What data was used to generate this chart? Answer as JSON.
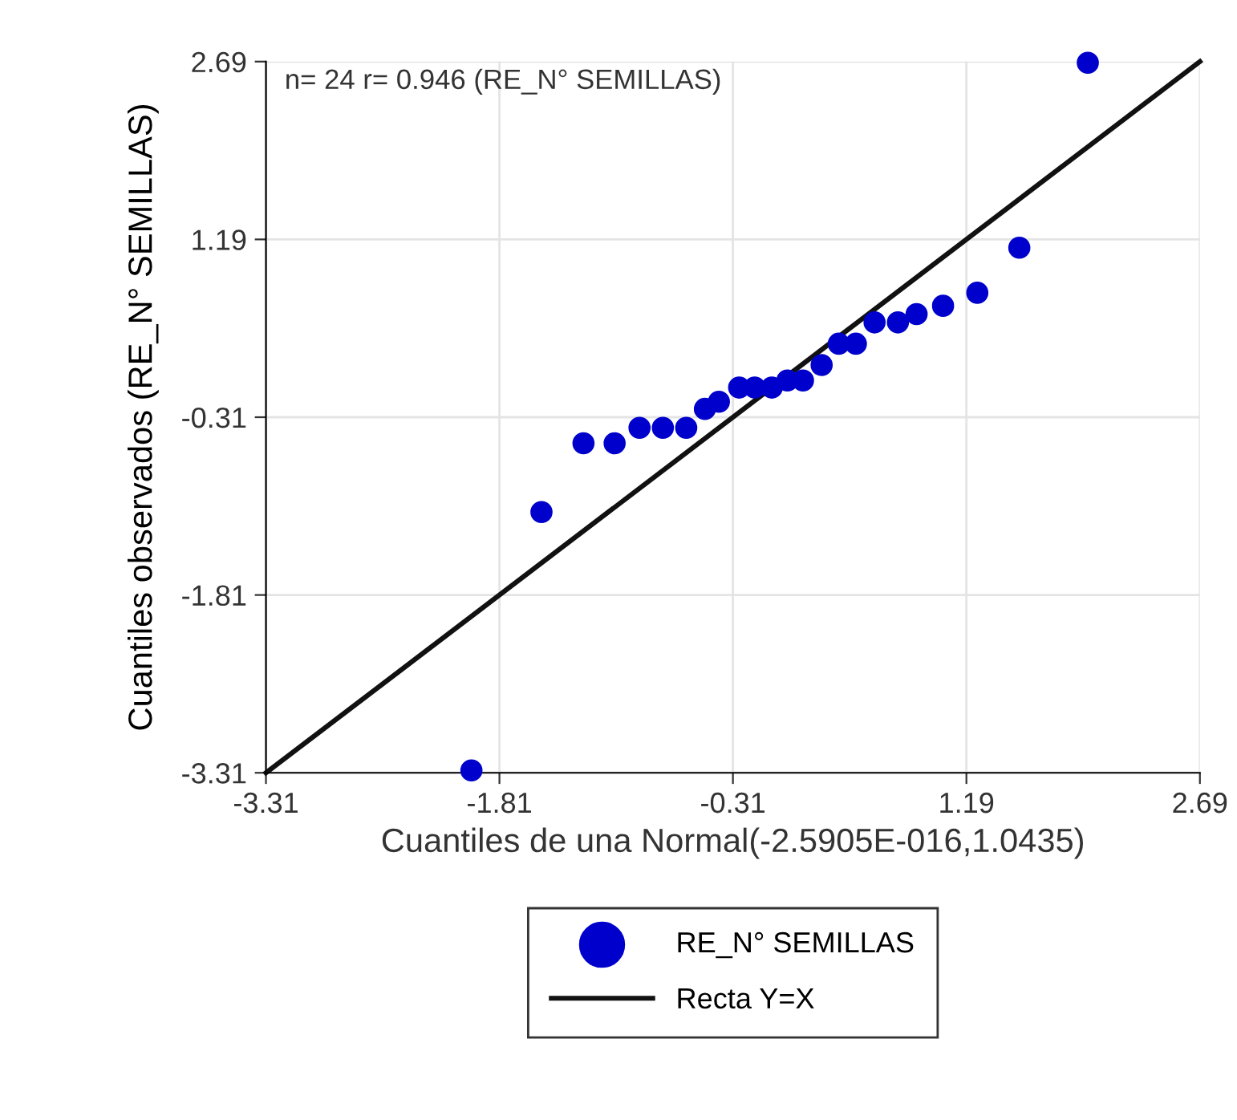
{
  "chart_data": {
    "type": "scatter",
    "xlabel": "Cuantiles de una Normal(-2.5905E-016,1.0435)",
    "ylabel": "Cuantiles observados (RE_N° SEMILLAS)",
    "annotations": [
      "n= 24 r= 0.946 (RE_N° SEMILLAS)"
    ],
    "series": [
      {
        "name": "RE_N° SEMILLAS",
        "color": "#0000cc",
        "marker": "circle",
        "x": [
          -1.99,
          -1.54,
          -1.27,
          -1.07,
          -0.91,
          -0.76,
          -0.61,
          -0.49,
          -0.4,
          -0.27,
          -0.17,
          -0.06,
          0.04,
          0.14,
          0.26,
          0.37,
          0.48,
          0.6,
          0.75,
          0.87,
          1.04,
          1.26,
          1.53,
          1.97
        ],
        "values": [
          -3.29,
          -1.11,
          -0.53,
          -0.53,
          -0.4,
          -0.4,
          -0.4,
          -0.24,
          -0.18,
          -0.06,
          -0.06,
          -0.06,
          0.0,
          0.0,
          0.13,
          0.31,
          0.31,
          0.49,
          0.49,
          0.56,
          0.63,
          0.74,
          1.12,
          2.68
        ]
      },
      {
        "name": "Recta Y=X",
        "type": "line",
        "color": "#111111",
        "line_style": "solid",
        "marker": "none",
        "x": [
          -3.31,
          2.69
        ],
        "values": [
          -3.31,
          2.69
        ]
      }
    ],
    "xlim": [
      -3.31,
      2.69
    ],
    "ylim": [
      -3.31,
      2.69
    ],
    "xticks": [
      -3.31,
      -1.81,
      -0.31,
      1.19,
      2.69
    ],
    "yticks": [
      -3.31,
      -1.81,
      -0.31,
      1.19,
      2.69
    ],
    "grid": true,
    "legend": "bottom"
  }
}
